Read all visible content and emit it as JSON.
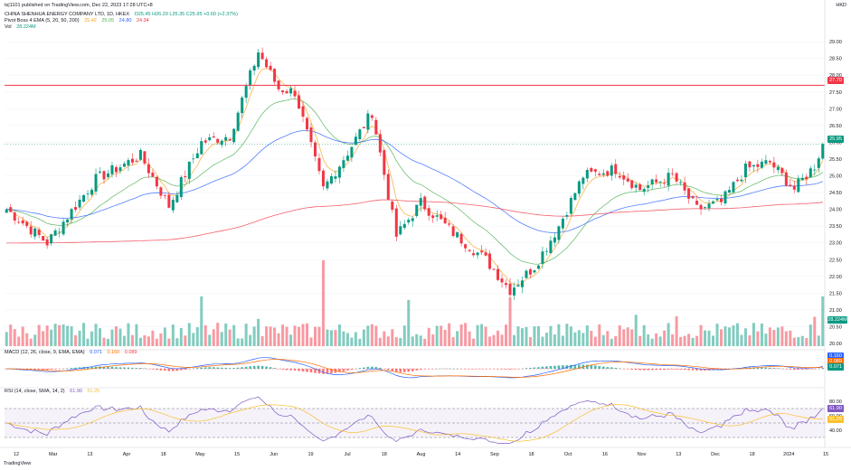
{
  "header": {
    "publish_line": "ts|1101 published on TradingView.com, Dec 22, 2023 17:28 UTC+8",
    "symbol_line": "CHINA SHENHUA ENERGY COMPANY LTD, 1D, HKEX",
    "ohlc": "O25.45 H26.20 L25.35 C25.95 +0.60 (+2.37%)",
    "ema_title": "Pivot Boss 4 EMA (5, 20, 50, 200)",
    "ema_values": [
      "25.42",
      "25.05",
      "24.80",
      "24.34"
    ],
    "vol_title": "Vol",
    "vol_value": "28.224M",
    "macd_title": "MACD (12, 26, close, 9, EMA, EMA)",
    "macd_values": [
      "0.071",
      "0.160",
      "0.089"
    ],
    "rsi_title": "RSI (14, close, SMA, 14, 2)",
    "rsi_values": [
      "61.90",
      "51.25"
    ],
    "currency": "HKD",
    "footer": "TradingView"
  },
  "badges": {
    "hline": "27.70",
    "last": "25.95",
    "vol": "28.224M",
    "macd_a": "0.160",
    "macd_b": "0.089",
    "macd_c": "0.071",
    "rsi_a": "61.90",
    "rsi_b": "51.25"
  },
  "chart_data": {
    "type": "candlestick",
    "price_axis": {
      "ticks": [
        "29.00",
        "28.50",
        "28.00",
        "27.50",
        "27.00",
        "26.50",
        "26.00",
        "25.50",
        "25.00",
        "24.50",
        "24.00",
        "23.50",
        "23.00",
        "22.50",
        "22.00",
        "21.50",
        "21.00",
        "20.50",
        "20.00"
      ],
      "range": [
        20.0,
        29.3
      ]
    },
    "time_axis": {
      "labels": [
        "12",
        "Mar",
        "13",
        "Apr",
        "18",
        "May",
        "15",
        "Jun",
        "19",
        "Jul",
        "18",
        "Aug",
        "14",
        "Sep",
        "18",
        "Oct",
        "16",
        "Nov",
        "13",
        "Dec",
        "18",
        "2024",
        "15"
      ]
    },
    "horizontal_line": 27.7,
    "last_price": 25.95,
    "rsi_axis": {
      "ticks": [
        "80.00",
        "60.00",
        "40.00"
      ],
      "range": [
        20,
        90
      ]
    },
    "anchors": [
      [
        0,
        24.0
      ],
      [
        10,
        23.0
      ],
      [
        22,
        24.9
      ],
      [
        33,
        25.6
      ],
      [
        40,
        24.1
      ],
      [
        48,
        26.0
      ],
      [
        55,
        26.2
      ],
      [
        62,
        28.7
      ],
      [
        67,
        27.6
      ],
      [
        71,
        27.5
      ],
      [
        78,
        24.6
      ],
      [
        84,
        25.7
      ],
      [
        90,
        26.9
      ],
      [
        96,
        23.2
      ],
      [
        102,
        24.2
      ],
      [
        110,
        23.3
      ],
      [
        118,
        22.5
      ],
      [
        124,
        21.6
      ],
      [
        130,
        22.3
      ],
      [
        136,
        23.5
      ],
      [
        142,
        25.0
      ],
      [
        150,
        25.2
      ],
      [
        156,
        24.6
      ],
      [
        164,
        25.0
      ],
      [
        170,
        24.0
      ],
      [
        176,
        24.2
      ],
      [
        182,
        25.2
      ],
      [
        188,
        25.4
      ],
      [
        194,
        24.6
      ],
      [
        199,
        25.3
      ],
      [
        201,
        25.95
      ]
    ]
  }
}
